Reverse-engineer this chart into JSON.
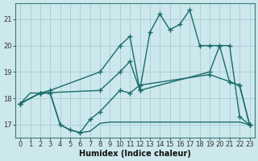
{
  "title": "",
  "xlabel": "Humidex (Indice chaleur)",
  "ylabel": "",
  "xlim": [
    -0.5,
    23.5
  ],
  "ylim": [
    16.5,
    21.6
  ],
  "bg_color": "#cce8ec",
  "grid_color": "#a0c8cc",
  "line_color": "#1a6b6b",
  "lines": [
    {
      "x": [
        0,
        1,
        2,
        3,
        4,
        5,
        6,
        7,
        8,
        9,
        10,
        11,
        12,
        13,
        14,
        15,
        16,
        17,
        18,
        19,
        20,
        21,
        22,
        23
      ],
      "y": [
        17.8,
        18.2,
        18.2,
        18.2,
        17.0,
        16.8,
        16.7,
        16.75,
        17.05,
        17.1,
        17.1,
        17.1,
        17.1,
        17.1,
        17.1,
        17.1,
        17.1,
        17.1,
        17.1,
        17.1,
        17.1,
        17.1,
        17.1,
        17.0
      ],
      "markers": false
    },
    {
      "x": [
        0,
        2,
        3,
        4,
        5,
        6,
        7,
        8,
        10,
        11,
        12,
        19,
        22,
        23
      ],
      "y": [
        17.8,
        18.2,
        18.2,
        17.0,
        16.8,
        16.7,
        17.2,
        17.5,
        18.3,
        18.2,
        18.5,
        18.9,
        18.5,
        17.0
      ],
      "markers": true
    },
    {
      "x": [
        0,
        2,
        3,
        8,
        10,
        11,
        12,
        19,
        20,
        21,
        22,
        23
      ],
      "y": [
        17.8,
        18.2,
        18.3,
        19.0,
        20.0,
        20.35,
        18.3,
        19.0,
        20.0,
        20.0,
        17.3,
        17.0
      ],
      "markers": true
    },
    {
      "x": [
        0,
        2,
        8,
        10,
        11,
        12,
        13,
        14,
        15,
        16,
        17,
        18,
        19,
        20,
        21,
        22,
        23
      ],
      "y": [
        17.8,
        18.2,
        18.3,
        19.0,
        19.4,
        18.3,
        20.5,
        21.2,
        20.6,
        20.8,
        21.35,
        20.0,
        20.0,
        20.0,
        18.6,
        18.5,
        17.0
      ],
      "markers": true
    }
  ],
  "xticks": [
    0,
    1,
    2,
    3,
    4,
    5,
    6,
    7,
    8,
    9,
    10,
    11,
    12,
    13,
    14,
    15,
    16,
    17,
    18,
    19,
    20,
    21,
    22,
    23
  ],
  "yticks": [
    17,
    18,
    19,
    20,
    21
  ],
  "marker": "+",
  "marker_size": 4.5,
  "linewidth": 1.0,
  "tick_fontsize": 6.0,
  "xlabel_fontsize": 7.0
}
